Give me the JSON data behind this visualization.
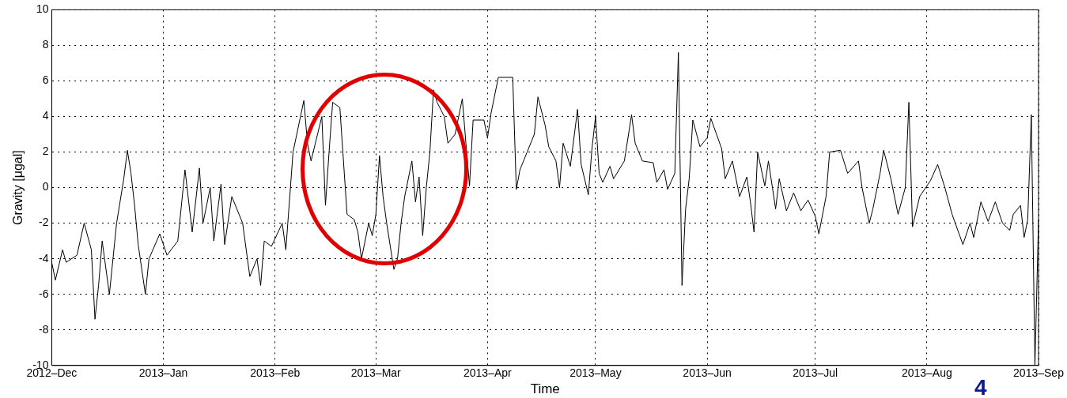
{
  "chart_data": {
    "type": "line",
    "xlabel": "Time",
    "ylabel": "Gravity [μgal]",
    "x": [
      "2012-12-01",
      "2012-12-02",
      "2012-12-04",
      "2012-12-05",
      "2012-12-08",
      "2012-12-10",
      "2012-12-12",
      "2012-12-13",
      "2012-12-14",
      "2012-12-15",
      "2012-12-17",
      "2012-12-19",
      "2012-12-21",
      "2012-12-22",
      "2012-12-23",
      "2012-12-24",
      "2012-12-25",
      "2012-12-27",
      "2012-12-28",
      "2012-12-31",
      "2013-01-02",
      "2013-01-05",
      "2013-01-07",
      "2013-01-09",
      "2013-01-11",
      "2013-01-12",
      "2013-01-14",
      "2013-01-15",
      "2013-01-17",
      "2013-01-18",
      "2013-01-20",
      "2013-01-23",
      "2013-01-25",
      "2013-01-27",
      "2013-01-28",
      "2013-01-29",
      "2013-01-31",
      "2013-02-03",
      "2013-02-04",
      "2013-02-06",
      "2013-02-09",
      "2013-02-10",
      "2013-02-11",
      "2013-02-14",
      "2013-02-15",
      "2013-02-16",
      "2013-02-17",
      "2013-02-19",
      "2013-02-21",
      "2013-02-23",
      "2013-02-24",
      "2013-02-25",
      "2013-02-27",
      "2013-02-28",
      "2013-03-01",
      "2013-03-02",
      "2013-03-03",
      "2013-03-04",
      "2013-03-05",
      "2013-03-06",
      "2013-03-07",
      "2013-03-08",
      "2013-03-09",
      "2013-03-11",
      "2013-03-12",
      "2013-03-13",
      "2013-03-14",
      "2013-03-15",
      "2013-03-16",
      "2013-03-17",
      "2013-03-18",
      "2013-03-20",
      "2013-03-21",
      "2013-03-23",
      "2013-03-25",
      "2013-03-26",
      "2013-03-27",
      "2013-03-28",
      "2013-03-31",
      "2013-04-01",
      "2013-04-02",
      "2013-04-04",
      "2013-04-08",
      "2013-04-09",
      "2013-04-10",
      "2013-04-12",
      "2013-04-14",
      "2013-04-15",
      "2013-04-17",
      "2013-04-18",
      "2013-04-20",
      "2013-04-21",
      "2013-04-22",
      "2013-04-24",
      "2013-04-26",
      "2013-04-27",
      "2013-04-29",
      "2013-04-30",
      "2013-05-01",
      "2013-05-02",
      "2013-05-03",
      "2013-05-05",
      "2013-05-06",
      "2013-05-09",
      "2013-05-11",
      "2013-05-12",
      "2013-05-14",
      "2013-05-17",
      "2013-05-18",
      "2013-05-20",
      "2013-05-21",
      "2013-05-23",
      "2013-05-24",
      "2013-05-25",
      "2013-05-26",
      "2013-05-27",
      "2013-05-28",
      "2013-05-30",
      "2013-06-01",
      "2013-06-02",
      "2013-06-05",
      "2013-06-06",
      "2013-06-08",
      "2013-06-10",
      "2013-06-12",
      "2013-06-13",
      "2013-06-14",
      "2013-06-15",
      "2013-06-17",
      "2013-06-18",
      "2013-06-20",
      "2013-06-21",
      "2013-06-23",
      "2013-06-25",
      "2013-06-27",
      "2013-06-29",
      "2013-07-01",
      "2013-07-02",
      "2013-07-04",
      "2013-07-05",
      "2013-07-08",
      "2013-07-10",
      "2013-07-13",
      "2013-07-14",
      "2013-07-16",
      "2013-07-17",
      "2013-07-19",
      "2013-07-20",
      "2013-07-22",
      "2013-07-24",
      "2013-07-26",
      "2013-07-27",
      "2013-07-28",
      "2013-07-30",
      "2013-08-02",
      "2013-08-04",
      "2013-08-06",
      "2013-08-08",
      "2013-08-11",
      "2013-08-13",
      "2013-08-14",
      "2013-08-16",
      "2013-08-18",
      "2013-08-20",
      "2013-08-22",
      "2013-08-24",
      "2013-08-25",
      "2013-08-27",
      "2013-08-28",
      "2013-08-29",
      "2013-08-30",
      "2013-08-31",
      "2013-09-01"
    ],
    "series": [
      {
        "color": "#000000",
        "values": [
          -4.2,
          -5.2,
          -3.5,
          -4.2,
          -3.8,
          -2,
          -3.5,
          -7.4,
          -5.5,
          -3,
          -6,
          -2,
          0.5,
          2.1,
          0.8,
          -1,
          -3.2,
          -6,
          -4,
          -2.6,
          -3.8,
          -3,
          1,
          -2.5,
          1.1,
          -2,
          0,
          -3,
          0.2,
          -3.2,
          -0.5,
          -2,
          -5,
          -4,
          -5.5,
          -3,
          -3.3,
          -2,
          -3.5,
          2,
          4.9,
          2.5,
          1.5,
          4,
          -1,
          2,
          4.8,
          4.5,
          -1.5,
          -1.8,
          -2.5,
          -4,
          -2,
          -2.7,
          -1.5,
          1.8,
          -0.5,
          -2,
          -3.3,
          -4.6,
          -4,
          -2,
          -0.5,
          1.5,
          -0.8,
          0.6,
          -2.7,
          0,
          2,
          5.5,
          4.8,
          4,
          2.5,
          3,
          5,
          2.5,
          0.1,
          3.8,
          3.8,
          2.8,
          4.2,
          6.2,
          6.2,
          -0.1,
          1,
          2,
          3,
          5.1,
          3.5,
          2.3,
          1.5,
          0,
          2.5,
          1.2,
          4.4,
          1.3,
          -0.4,
          2.2,
          4,
          0.8,
          0.3,
          1.2,
          0.5,
          1.5,
          4.1,
          2.5,
          1.5,
          1.4,
          0.3,
          1,
          -0.1,
          0.8,
          7.6,
          -5.5,
          -1.2,
          0.5,
          3.8,
          2.3,
          2.8,
          3.9,
          2.2,
          0.5,
          1.5,
          -0.5,
          0.6,
          -0.8,
          -2.5,
          2,
          0.1,
          1.5,
          -1.2,
          0.5,
          -1.3,
          -0.3,
          -1.3,
          -0.7,
          -1.6,
          -2.6,
          -0.5,
          2,
          2.1,
          0.8,
          1.5,
          0,
          -2,
          -1.2,
          0.8,
          2.1,
          0.5,
          -1.5,
          0,
          4.8,
          -2.2,
          -0.5,
          0.4,
          1.3,
          0,
          -1.5,
          -3.2,
          -2,
          -2.8,
          -0.8,
          -1.9,
          -0.8,
          -2,
          -2.4,
          -1.5,
          -1,
          -2.8,
          -1.8,
          4.1,
          -10,
          -1.8
        ]
      }
    ],
    "xlim": [
      "2012-12-01",
      "2013-09-01"
    ],
    "xticks": [
      {
        "value": "2012-12-01",
        "label": "2012–Dec"
      },
      {
        "value": "2013-01-01",
        "label": "2013–Jan"
      },
      {
        "value": "2013-02-01",
        "label": "2013–Feb"
      },
      {
        "value": "2013-03-01",
        "label": "2013–Mar"
      },
      {
        "value": "2013-04-01",
        "label": "2013–Apr"
      },
      {
        "value": "2013-05-01",
        "label": "2013–May"
      },
      {
        "value": "2013-06-01",
        "label": "2013–Jun"
      },
      {
        "value": "2013-07-01",
        "label": "2013–Jul"
      },
      {
        "value": "2013-08-01",
        "label": "2013–Aug"
      },
      {
        "value": "2013-09-01",
        "label": "2013–Sep"
      }
    ],
    "ylim": [
      -10,
      10
    ],
    "yticks": [
      -10,
      -8,
      -6,
      -4,
      -2,
      0,
      2,
      4,
      6,
      8,
      10
    ],
    "grid": true,
    "marker": "none",
    "line_style": "solid",
    "annotations": [
      "4"
    ]
  }
}
